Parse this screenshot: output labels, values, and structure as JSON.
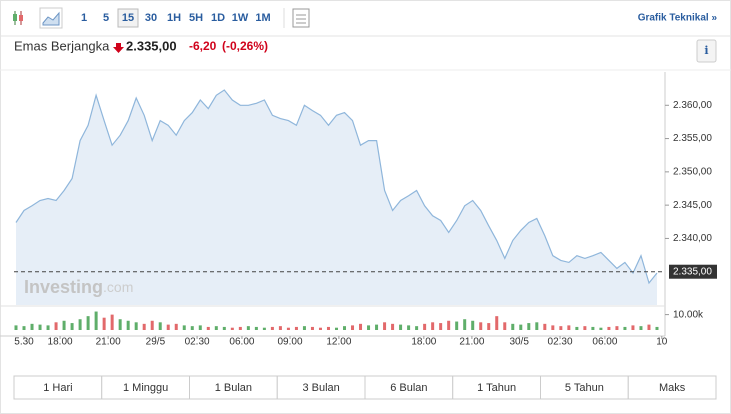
{
  "toolbar": {
    "intervals": [
      "1",
      "5",
      "15",
      "30",
      "1H",
      "5H",
      "1D",
      "1W",
      "1M"
    ],
    "selected": "15",
    "link": "Grafik Teknikal »"
  },
  "header": {
    "title": "Emas Berjangka",
    "price": "2.335,00",
    "change": "-6,20",
    "change_pct": "(-0,26%)",
    "info": "i"
  },
  "watermark": {
    "brand": "Investing",
    "suffix": ".com"
  },
  "chart_data": [
    {
      "type": "area",
      "color": "#8fb6db",
      "fill": "#e6eef7",
      "xlim": [
        0,
        81
      ],
      "ylim": [
        2330,
        2365
      ],
      "xticks": [
        {
          "value": 1,
          "label": "5.30"
        },
        {
          "value": 5.5,
          "label": "18.00"
        },
        {
          "value": 11.5,
          "label": "21.00"
        },
        {
          "value": 17.4,
          "label": "29/5"
        },
        {
          "value": 22.6,
          "label": "02.30"
        },
        {
          "value": 28.2,
          "label": "06.00"
        },
        {
          "value": 34.2,
          "label": "09.00"
        },
        {
          "value": 40.3,
          "label": "12.00"
        },
        {
          "value": 50.9,
          "label": "18.00"
        },
        {
          "value": 56.9,
          "label": "21.00"
        },
        {
          "value": 62.8,
          "label": "30/5"
        },
        {
          "value": 67.9,
          "label": "02.30"
        },
        {
          "value": 73.5,
          "label": "06.00"
        },
        {
          "value": 80.6,
          "label": "10"
        }
      ],
      "yticks": [
        {
          "value": 2340,
          "label": "2.340,00"
        },
        {
          "value": 2345,
          "label": "2.345,00"
        },
        {
          "value": 2350,
          "label": "2.350,00"
        },
        {
          "value": 2355,
          "label": "2.355,00"
        },
        {
          "value": 2360,
          "label": "2.360,00"
        }
      ],
      "last_price": {
        "value": 2335,
        "label": "2.335,00"
      },
      "values": [
        2342.4,
        2344.2,
        2344.9,
        2345.7,
        2346.0,
        2345.7,
        2347.2,
        2349.0,
        2354.7,
        2357.0,
        2361.5,
        2357.7,
        2354.0,
        2355.5,
        2357.7,
        2361.1,
        2358.5,
        2354.7,
        2357.7,
        2357.0,
        2355.5,
        2357.7,
        2358.9,
        2360.8,
        2359.5,
        2361.5,
        2362.3,
        2360.8,
        2360.0,
        2360.0,
        2360.3,
        2360.8,
        2358.5,
        2358.0,
        2357.7,
        2357.0,
        2360.0,
        2359.2,
        2358.5,
        2357.0,
        2358.5,
        2358.9,
        2357.7,
        2354.0,
        2354.7,
        2354.7,
        2347.2,
        2344.2,
        2345.7,
        2346.4,
        2347.2,
        2344.9,
        2343.4,
        2342.7,
        2340.9,
        2342.7,
        2344.9,
        2345.7,
        2344.2,
        2341.9,
        2339.7,
        2337.0,
        2339.7,
        2341.2,
        2342.4,
        2343.0,
        2340.4,
        2337.4,
        2336.7,
        2336.4,
        2337.4,
        2337.0,
        2337.4,
        2337.9,
        2336.7,
        2335.5,
        2336.4,
        2334.8,
        2337.4,
        2333.3,
        2334.8
      ]
    },
    {
      "type": "bar",
      "up_color": "#5fae6a",
      "down_color": "#e2696b",
      "ylim": [
        0,
        13000
      ],
      "yticks": [
        {
          "value": 10000,
          "label": "10.00k"
        }
      ],
      "values": [
        3000,
        2500,
        4000,
        3500,
        3000,
        5000,
        6000,
        4500,
        7000,
        9000,
        12000,
        8000,
        10000,
        7000,
        6000,
        5000,
        4000,
        6000,
        5000,
        3500,
        4000,
        3000,
        2500,
        3000,
        2000,
        2500,
        2000,
        1500,
        2000,
        2500,
        2000,
        1500,
        2000,
        2500,
        1500,
        2000,
        2500,
        2000,
        1500,
        2000,
        1500,
        2500,
        3000,
        4000,
        3000,
        3500,
        5000,
        4000,
        3500,
        3000,
        2500,
        4000,
        5000,
        4500,
        6000,
        5500,
        7000,
        6000,
        5000,
        4500,
        9000,
        5000,
        4000,
        3500,
        4500,
        5000,
        4000,
        3000,
        2500,
        3000,
        2000,
        2500,
        2000,
        1500,
        2000,
        2500,
        2000,
        3000,
        2500,
        3500,
        2000
      ]
    }
  ],
  "ranges": [
    "1 Hari",
    "1 Minggu",
    "1 Bulan",
    "3 Bulan",
    "6 Bulan",
    "1 Tahun",
    "5 Tahun",
    "Maks"
  ]
}
